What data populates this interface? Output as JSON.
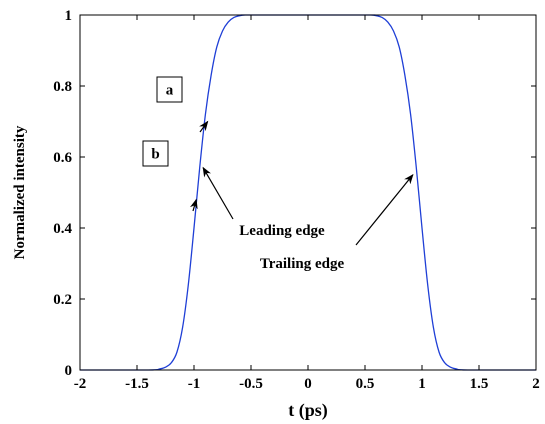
{
  "chart_data": {
    "type": "line",
    "title": "",
    "xlabel": "t (ps)",
    "ylabel": "Normalized intensity",
    "xlim": [
      -2,
      2
    ],
    "ylim": [
      0,
      1
    ],
    "grid": false,
    "x_ticks": [
      "-2",
      "-1.5",
      "-1",
      "-0.5",
      "0",
      "0.5",
      "1",
      "1.5",
      "2"
    ],
    "y_ticks": [
      "0",
      "0.2",
      "0.4",
      "0.6",
      "0.8",
      "1"
    ],
    "series": [
      {
        "color": "#1f3fd6",
        "x": [
          -2.0,
          -1.4,
          -1.3,
          -1.25,
          -1.2,
          -1.15,
          -1.1,
          -1.05,
          -1.0,
          -0.95,
          -0.9,
          -0.85,
          -0.8,
          -0.75,
          -0.7,
          -0.65,
          -0.6,
          -0.55,
          -0.5,
          0.5,
          0.55,
          0.6,
          0.65,
          0.7,
          0.75,
          0.8,
          0.85,
          0.9,
          0.95,
          1.0,
          1.05,
          1.1,
          1.15,
          1.2,
          1.25,
          1.3,
          1.4,
          2.0
        ],
        "y": [
          0.0,
          0.0,
          0.003,
          0.008,
          0.02,
          0.05,
          0.12,
          0.24,
          0.4,
          0.57,
          0.72,
          0.83,
          0.91,
          0.955,
          0.98,
          0.993,
          0.998,
          1.0,
          1.0,
          1.0,
          1.0,
          0.998,
          0.993,
          0.98,
          0.955,
          0.91,
          0.83,
          0.72,
          0.57,
          0.4,
          0.24,
          0.12,
          0.05,
          0.02,
          0.008,
          0.003,
          0.0,
          0.0
        ]
      }
    ],
    "annotations": [
      {
        "text": "Leading edge",
        "arrow_to": [
          -0.92,
          0.57
        ]
      },
      {
        "text": "Trailing edge",
        "arrow_to": [
          0.92,
          0.55
        ]
      },
      {
        "text": "a",
        "boxed": true,
        "arrow_to": [
          -0.88,
          0.7
        ]
      },
      {
        "text": "b",
        "boxed": true,
        "arrow_to": [
          -0.98,
          0.48
        ]
      }
    ]
  }
}
